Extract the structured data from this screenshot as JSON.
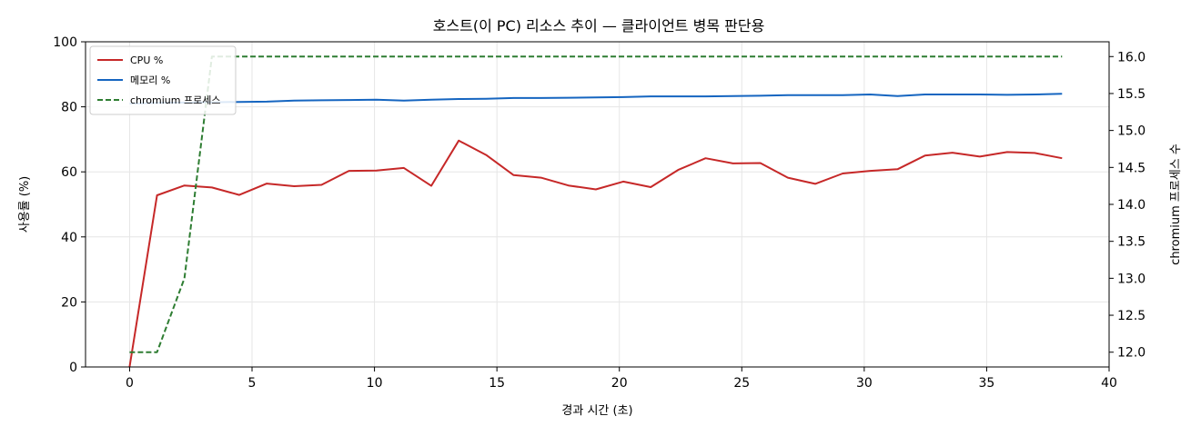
{
  "chart_data": {
    "type": "line",
    "title": "호스트(이 PC) 리소스 추이 — 클라이언트 병목 판단용",
    "xlabel": "경과 시간 (초)",
    "ylabel": "사용률 (%)",
    "ylabel_right": "chromium 프로세스 수",
    "xlim": [
      -1.8,
      40
    ],
    "ylim": [
      0,
      100
    ],
    "ylim_right": [
      11.8,
      16.2
    ],
    "x_ticks": [
      0,
      5,
      10,
      15,
      20,
      25,
      30,
      35,
      40
    ],
    "y_ticks": [
      0,
      20,
      40,
      60,
      80,
      100
    ],
    "y_ticks_right": [
      "12.0",
      "12.5",
      "13.0",
      "13.5",
      "14.0",
      "14.5",
      "15.0",
      "15.5",
      "16.0"
    ],
    "grid": true,
    "legend_position": "top-left",
    "series": [
      {
        "name": "CPU %",
        "axis": "left",
        "color": "#c62828",
        "style": "solid",
        "x": [
          0,
          1.12,
          2.24,
          3.36,
          4.48,
          5.6,
          6.72,
          7.84,
          8.96,
          10.08,
          11.2,
          12.32,
          13.44,
          14.56,
          15.68,
          16.8,
          17.92,
          19.04,
          20.16,
          21.28,
          22.4,
          23.52,
          24.64,
          25.76,
          26.88,
          28.0,
          29.12,
          30.24,
          31.36,
          32.48,
          33.6,
          34.72,
          35.84,
          36.96,
          38.08
        ],
        "values": [
          0,
          52.8,
          55.8,
          55.2,
          52.9,
          56.4,
          55.6,
          56.0,
          60.3,
          60.4,
          61.2,
          55.7,
          69.6,
          65.2,
          59.0,
          58.2,
          55.8,
          54.6,
          57.0,
          55.3,
          60.6,
          64.2,
          62.6,
          62.7,
          58.2,
          56.3,
          59.5,
          60.3,
          60.8,
          65.0,
          65.9,
          64.7,
          66.1,
          65.8,
          64.2
        ]
      },
      {
        "name": "메모리 %",
        "axis": "left",
        "color": "#1565c0",
        "style": "solid",
        "x": [
          0,
          1.12,
          2.24,
          3.36,
          4.48,
          5.6,
          6.72,
          7.84,
          8.96,
          10.08,
          11.2,
          12.32,
          13.44,
          14.56,
          15.68,
          16.8,
          17.92,
          19.04,
          20.16,
          21.28,
          22.4,
          23.52,
          24.64,
          25.76,
          26.88,
          28.0,
          29.12,
          30.24,
          31.36,
          32.48,
          33.6,
          34.72,
          35.84,
          36.96,
          38.08
        ],
        "values": [
          81.0,
          81.2,
          81.3,
          81.4,
          81.5,
          81.6,
          81.9,
          82.0,
          82.1,
          82.2,
          81.9,
          82.2,
          82.4,
          82.5,
          82.7,
          82.7,
          82.8,
          82.9,
          83.0,
          83.2,
          83.2,
          83.2,
          83.3,
          83.4,
          83.6,
          83.6,
          83.6,
          83.8,
          83.3,
          83.8,
          83.8,
          83.8,
          83.7,
          83.8,
          84.0
        ]
      },
      {
        "name": "chromium 프로세스",
        "axis": "right",
        "color": "#2e7d32",
        "style": "dashed",
        "x": [
          0,
          1.12,
          2.24,
          3.36,
          4.48,
          5.6,
          6.72,
          7.84,
          8.96,
          10.08,
          11.2,
          12.32,
          13.44,
          14.56,
          15.68,
          16.8,
          17.92,
          19.04,
          20.16,
          21.28,
          22.4,
          23.52,
          24.64,
          25.76,
          26.88,
          28.0,
          29.12,
          30.24,
          31.36,
          32.48,
          33.6,
          34.72,
          35.84,
          36.96,
          38.08
        ],
        "values": [
          12,
          12,
          13,
          16,
          16,
          16,
          16,
          16,
          16,
          16,
          16,
          16,
          16,
          16,
          16,
          16,
          16,
          16,
          16,
          16,
          16,
          16,
          16,
          16,
          16,
          16,
          16,
          16,
          16,
          16,
          16,
          16,
          16,
          16,
          16
        ]
      }
    ]
  }
}
